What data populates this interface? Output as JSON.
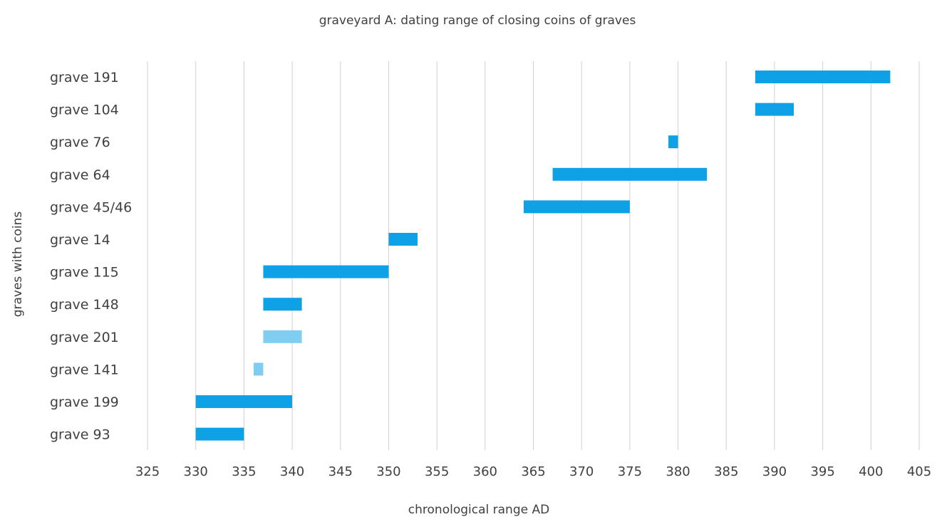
{
  "chart_data": {
    "type": "bar",
    "orientation": "horizontal-range",
    "title": "graveyard A: dating range of closing coins of graves",
    "xlabel": "chronological range AD",
    "ylabel": "graves with coins",
    "xlim": [
      325,
      405
    ],
    "xticks": [
      325,
      330,
      335,
      340,
      345,
      350,
      355,
      360,
      365,
      370,
      375,
      380,
      385,
      390,
      395,
      400,
      405
    ],
    "grid": true,
    "categories": [
      "grave 191",
      "grave 104",
      "grave 76",
      "grave 64",
      "grave 45/46",
      "grave 14",
      "grave 115",
      "grave 148",
      "grave 201",
      "grave 141",
      "grave 199",
      "grave 93"
    ],
    "ranges": [
      {
        "start": 388,
        "end": 402,
        "color": "#0ea1e6"
      },
      {
        "start": 388,
        "end": 392,
        "color": "#0ea1e6"
      },
      {
        "start": 379,
        "end": 380,
        "color": "#0ea1e6"
      },
      {
        "start": 367,
        "end": 383,
        "color": "#0ea1e6"
      },
      {
        "start": 364,
        "end": 375,
        "color": "#0ea1e6"
      },
      {
        "start": 350,
        "end": 353,
        "color": "#0ea1e6"
      },
      {
        "start": 337,
        "end": 350,
        "color": "#0ea1e6"
      },
      {
        "start": 337,
        "end": 341,
        "color": "#0ea1e6"
      },
      {
        "start": 337,
        "end": 341,
        "color": "#80cdf2"
      },
      {
        "start": 336,
        "end": 337,
        "color": "#80cdf2"
      },
      {
        "start": 330,
        "end": 340,
        "color": "#0ea1e6"
      },
      {
        "start": 330,
        "end": 335,
        "color": "#0ea1e6"
      }
    ]
  }
}
